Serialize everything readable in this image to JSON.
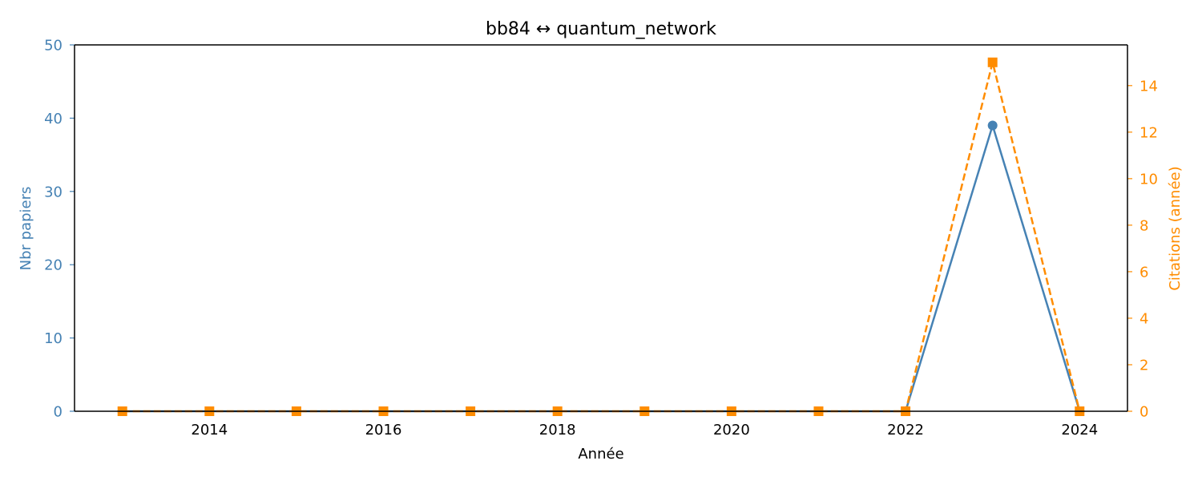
{
  "chart_data": {
    "type": "line",
    "title": "bb84  ↔  quantum_network",
    "xlabel": "Année",
    "ylabel_left": "Nbr papiers",
    "ylabel_right": "Citations (année)",
    "x": [
      2013,
      2014,
      2015,
      2016,
      2017,
      2018,
      2019,
      2020,
      2021,
      2022,
      2023,
      2024
    ],
    "xlim": [
      2012.45,
      2024.55
    ],
    "xticks": [
      2014,
      2016,
      2018,
      2020,
      2022,
      2024
    ],
    "ylim_left": [
      0,
      50
    ],
    "yticks_left": [
      0,
      10,
      20,
      30,
      40,
      50
    ],
    "ylim_right": [
      0,
      15.75
    ],
    "yticks_right": [
      0,
      2,
      4,
      6,
      8,
      10,
      12,
      14
    ],
    "grid": false,
    "series": [
      {
        "axis": "left",
        "color": "#4682b4",
        "marker": "circle",
        "linestyle": "solid",
        "values": [
          0,
          0,
          0,
          0,
          0,
          0,
          0,
          0,
          0,
          0,
          39,
          0
        ]
      },
      {
        "axis": "right",
        "color": "#ff8c00",
        "marker": "square",
        "linestyle": "dashed",
        "values": [
          0,
          0,
          0,
          0,
          0,
          0,
          0,
          0,
          0,
          0,
          15,
          0
        ]
      }
    ],
    "colors": {
      "left_axis": "#4682b4",
      "right_axis": "#ff8c00",
      "axis": "#000000"
    }
  }
}
